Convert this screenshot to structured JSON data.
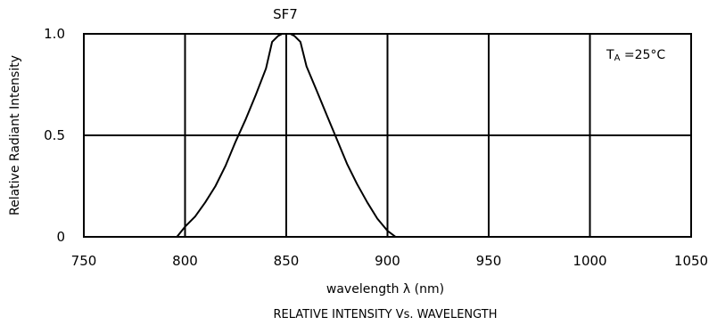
{
  "chart_data": {
    "type": "line",
    "title": "SF7",
    "xlabel": "wavelength λ (nm)",
    "ylabel": "Relative Radiant Intensity",
    "caption": "RELATIVE INTENSITY Vs. WAVELENGTH",
    "annotation": {
      "main": "T",
      "subscript": "A",
      "rest": " =25°C"
    },
    "xlim": [
      750,
      1050
    ],
    "ylim": [
      0,
      1.0
    ],
    "x_ticks": [
      "750",
      "800",
      "850",
      "900",
      "950",
      "1000",
      "1050"
    ],
    "y_ticks": [
      "0",
      "0.5",
      "1.0"
    ],
    "grid": true,
    "series": [
      {
        "x": [
          796,
          800,
          805,
          810,
          815,
          820,
          825,
          830,
          835,
          840,
          843,
          846,
          848,
          850,
          852,
          854,
          857,
          860,
          865,
          870,
          875,
          880,
          885,
          890,
          895,
          900,
          904
        ],
        "y": [
          0,
          0.05,
          0.1,
          0.17,
          0.25,
          0.35,
          0.47,
          0.58,
          0.7,
          0.83,
          0.96,
          0.99,
          1.0,
          1.0,
          1.0,
          0.99,
          0.96,
          0.84,
          0.72,
          0.6,
          0.48,
          0.36,
          0.26,
          0.17,
          0.09,
          0.03,
          0
        ]
      }
    ]
  }
}
